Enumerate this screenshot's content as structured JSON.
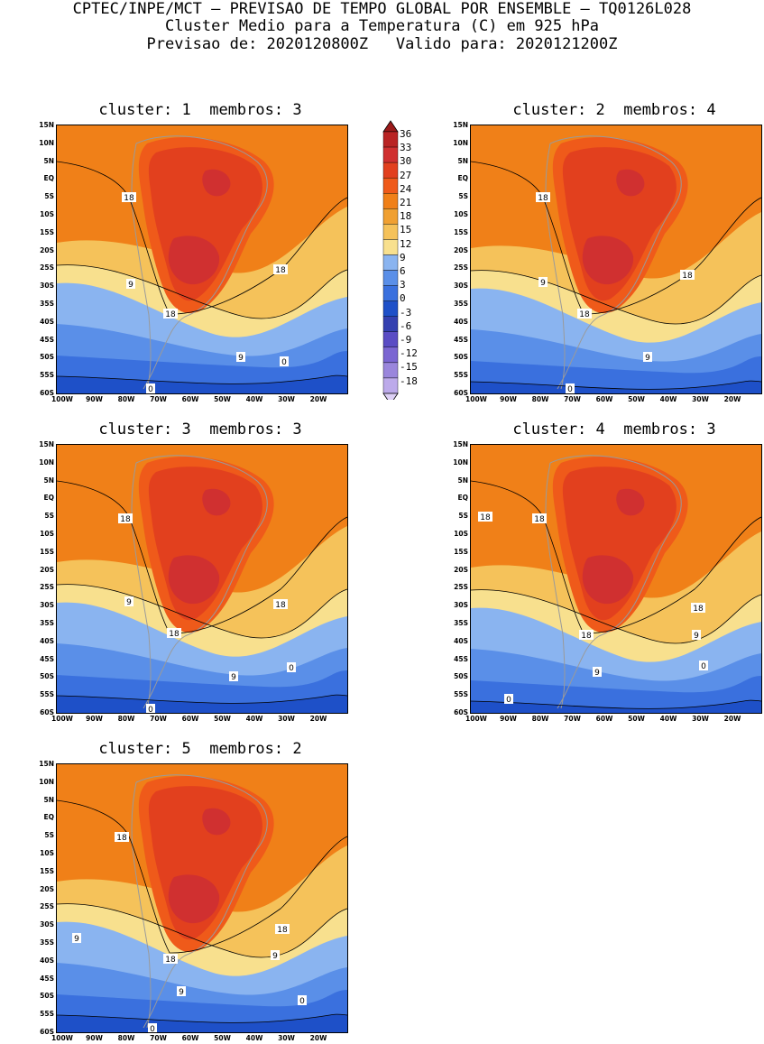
{
  "header": {
    "line1": "CPTEC/INPE/MCT – PREVISAO DE TEMPO GLOBAL POR ENSEMBLE – TQ0126L028",
    "line2": "Cluster Medio para a Temperatura (C) em 925 hPa",
    "line3": "Previsao de: 2020120800Z   Valido para: 2020121200Z"
  },
  "panels": [
    {
      "title": "cluster: 1  membros: 3",
      "labels": [
        "18",
        "18",
        "18",
        "9",
        "9",
        "0",
        "0"
      ]
    },
    {
      "title": "cluster: 2  membros: 4",
      "labels": [
        "18",
        "18",
        "18",
        "9",
        "9",
        "0"
      ]
    },
    {
      "title": "cluster: 3  membros: 3",
      "labels": [
        "18",
        "18",
        "18",
        "9",
        "9",
        "0",
        "0"
      ]
    },
    {
      "title": "cluster: 4  membros: 3",
      "labels": [
        "18",
        "18",
        "18",
        "18",
        "9",
        "9",
        "0",
        "0"
      ]
    },
    {
      "title": "cluster: 5  membros: 2",
      "labels": [
        "18",
        "18",
        "18",
        "9",
        "9",
        "9",
        "0",
        "0"
      ]
    }
  ],
  "axes": {
    "lat_labels": [
      "15N",
      "10N",
      "5N",
      "EQ",
      "5S",
      "10S",
      "15S",
      "20S",
      "25S",
      "30S",
      "35S",
      "40S",
      "45S",
      "50S",
      "55S",
      "60S"
    ],
    "lon_labels": [
      "100W",
      "90W",
      "80W",
      "70W",
      "60W",
      "50W",
      "40W",
      "30W",
      "20W"
    ]
  },
  "colorbar": {
    "labels": [
      "36",
      "33",
      "30",
      "27",
      "24",
      "21",
      "18",
      "15",
      "12",
      "9",
      "6",
      "3",
      "0",
      "-3",
      "-6",
      "-9",
      "-12",
      "-15",
      "-18"
    ],
    "colors": [
      "#9b1a1a",
      "#b92424",
      "#d03030",
      "#e2401e",
      "#ef5a1a",
      "#f08018",
      "#f0a032",
      "#f5c25a",
      "#f8e08e",
      "#8ab4f0",
      "#5a8fe8",
      "#3a70de",
      "#1e50c8",
      "#3440b0",
      "#5a4cc4",
      "#7b66d2",
      "#9a86dc",
      "#bcaaea",
      "#ddd0f6"
    ]
  }
}
